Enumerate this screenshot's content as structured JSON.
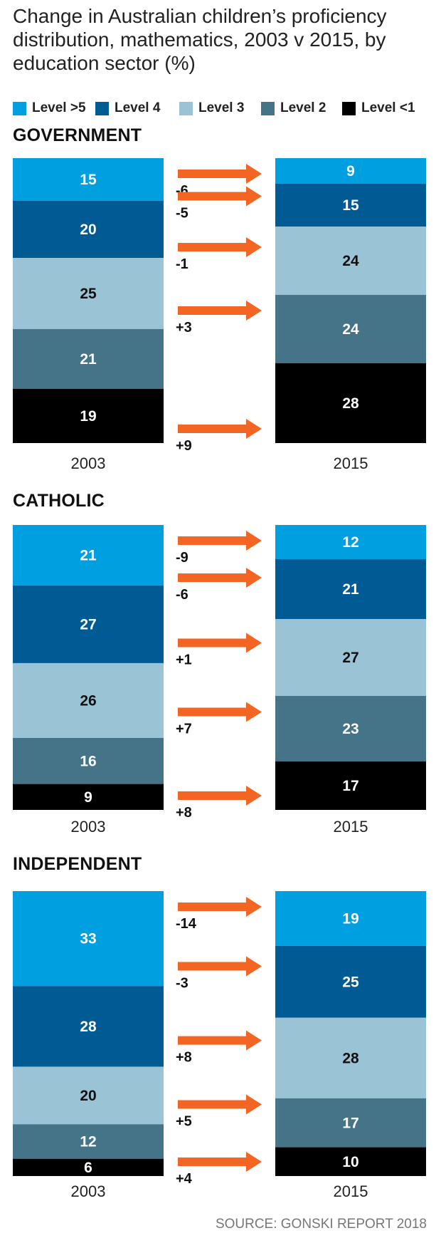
{
  "title": "Change in Australian children’s proficiency distribution, mathematics, 2003 v 2015, by education sector (%)",
  "source": "SOURCE: GONSKI REPORT 2018",
  "legend": [
    {
      "label": "Level >5",
      "color": "#009fe0"
    },
    {
      "label": "Level 4",
      "color": "#005a94"
    },
    {
      "label": "Level 3",
      "color": "#9ac3d5"
    },
    {
      "label": "Level 2",
      "color": "#457489"
    },
    {
      "label": "Level <1",
      "color": "#000000"
    }
  ],
  "arrow_color": "#f26522",
  "chart_data": [
    {
      "type": "bar",
      "stacked": true,
      "title": "GOVERNMENT",
      "categories": [
        "2003",
        "2015"
      ],
      "series": [
        {
          "name": "Level >5",
          "values": [
            15,
            9
          ]
        },
        {
          "name": "Level 4",
          "values": [
            20,
            15
          ]
        },
        {
          "name": "Level 3",
          "values": [
            25,
            24
          ]
        },
        {
          "name": "Level 2",
          "values": [
            21,
            24
          ]
        },
        {
          "name": "Level <1",
          "values": [
            19,
            28
          ]
        }
      ],
      "changes": [
        "-6",
        "-5",
        "-1",
        "+3",
        "+9"
      ]
    },
    {
      "type": "bar",
      "stacked": true,
      "title": "CATHOLIC",
      "categories": [
        "2003",
        "2015"
      ],
      "series": [
        {
          "name": "Level >5",
          "values": [
            21,
            12
          ]
        },
        {
          "name": "Level 4",
          "values": [
            27,
            21
          ]
        },
        {
          "name": "Level 3",
          "values": [
            26,
            27
          ]
        },
        {
          "name": "Level 2",
          "values": [
            16,
            23
          ]
        },
        {
          "name": "Level <1",
          "values": [
            9,
            17
          ]
        }
      ],
      "changes": [
        "-9",
        "-6",
        "+1",
        "+7",
        "+8"
      ]
    },
    {
      "type": "bar",
      "stacked": true,
      "title": "INDEPENDENT",
      "categories": [
        "2003",
        "2015"
      ],
      "series": [
        {
          "name": "Level >5",
          "values": [
            33,
            19
          ]
        },
        {
          "name": "Level 4",
          "values": [
            28,
            25
          ]
        },
        {
          "name": "Level 3",
          "values": [
            20,
            28
          ]
        },
        {
          "name": "Level 2",
          "values": [
            12,
            17
          ]
        },
        {
          "name": "Level <1",
          "values": [
            6,
            10
          ]
        }
      ],
      "changes": [
        "-14",
        "-3",
        "+8",
        "+5",
        "+4"
      ]
    }
  ]
}
